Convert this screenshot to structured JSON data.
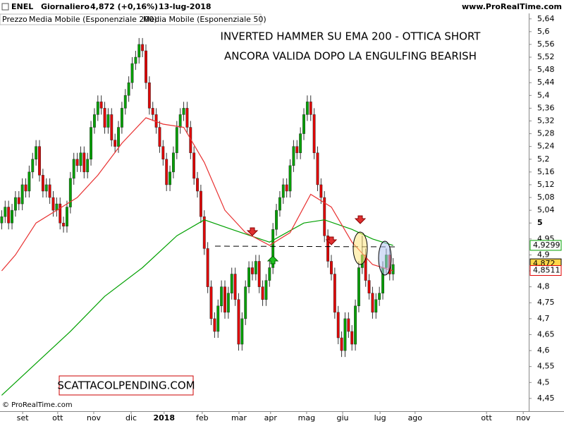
{
  "chart_data": {
    "type": "candlestick",
    "symbol": "ENEL",
    "period": "Giornaliero",
    "quote": "4,872 (+0,16%)",
    "date": "13-lug-2018",
    "site": "www.ProRealTime.com",
    "price_label": "Prezzo",
    "annotation": [
      "INVERTED HAMMER SU EMA 200 - OTTICA SHORT",
      "ANCORA VALIDA DOPO LA ENGULFING BEARISH"
    ],
    "watermark": "SCATTACOLPENDING.COM",
    "copyright": "© ProRealTime.com",
    "up_color": "#00a000",
    "down_color": "#e00000",
    "open": [
      5.0,
      5.02,
      5.05,
      5.0,
      5.04,
      5.08,
      5.06,
      5.12,
      5.1,
      5.16,
      5.2,
      5.24,
      5.15,
      5.1,
      5.12,
      5.08,
      5.04,
      5.06,
      5.0,
      4.99,
      5.05,
      5.14,
      5.2,
      5.18,
      5.22,
      5.16,
      5.2,
      5.3,
      5.34,
      5.38,
      5.36,
      5.3,
      5.34,
      5.26,
      5.24,
      5.3,
      5.36,
      5.4,
      5.44,
      5.5,
      5.52,
      5.56,
      5.54,
      5.44,
      5.36,
      5.34,
      5.3,
      5.24,
      5.2,
      5.12,
      5.16,
      5.22,
      5.3,
      5.34,
      5.36,
      5.3,
      5.22,
      5.14,
      5.1,
      5.02,
      4.92,
      4.8,
      4.7,
      4.66,
      4.74,
      4.8,
      4.72,
      4.78,
      4.84,
      4.76,
      4.62,
      4.7,
      4.8,
      4.86,
      4.84,
      4.88,
      4.8,
      4.76,
      4.82,
      4.86,
      4.98,
      5.04,
      5.08,
      5.12,
      5.1,
      5.18,
      5.24,
      5.22,
      5.28,
      5.34,
      5.38,
      5.34,
      5.22,
      5.12,
      5.08,
      4.96,
      4.88,
      4.84,
      4.72,
      4.64,
      4.6,
      4.7,
      4.66,
      4.62,
      4.74,
      4.86,
      4.9,
      4.82,
      4.78,
      4.72,
      4.76,
      4.78,
      4.86,
      4.9,
      4.84
    ],
    "high": [
      5.04,
      5.07,
      5.07,
      5.06,
      5.1,
      5.1,
      5.14,
      5.14,
      5.18,
      5.22,
      5.26,
      5.26,
      5.17,
      5.14,
      5.14,
      5.1,
      5.08,
      5.08,
      5.02,
      5.07,
      5.16,
      5.22,
      5.22,
      5.24,
      5.24,
      5.22,
      5.32,
      5.36,
      5.4,
      5.4,
      5.38,
      5.36,
      5.36,
      5.28,
      5.32,
      5.38,
      5.42,
      5.46,
      5.52,
      5.54,
      5.58,
      5.58,
      5.56,
      5.46,
      5.38,
      5.36,
      5.32,
      5.26,
      5.22,
      5.18,
      5.24,
      5.32,
      5.36,
      5.38,
      5.38,
      5.32,
      5.24,
      5.16,
      5.12,
      5.04,
      4.94,
      4.82,
      4.72,
      4.76,
      4.82,
      4.82,
      4.8,
      4.86,
      4.86,
      4.78,
      4.72,
      4.82,
      4.88,
      4.88,
      4.9,
      4.9,
      4.82,
      4.84,
      4.88,
      5.0,
      5.06,
      5.1,
      5.14,
      5.14,
      5.2,
      5.26,
      5.26,
      5.3,
      5.36,
      5.4,
      5.4,
      5.36,
      5.24,
      5.14,
      5.1,
      4.98,
      4.9,
      4.86,
      4.74,
      4.66,
      4.72,
      4.72,
      4.68,
      4.76,
      4.88,
      4.96,
      4.92,
      4.84,
      4.8,
      4.78,
      4.8,
      4.88,
      4.92,
      4.92,
      4.89
    ],
    "low": [
      4.98,
      5.0,
      4.98,
      4.98,
      5.02,
      5.04,
      5.04,
      5.08,
      5.08,
      5.14,
      5.18,
      5.13,
      5.08,
      5.08,
      5.06,
      5.02,
      5.02,
      4.98,
      4.97,
      4.97,
      5.03,
      5.12,
      5.16,
      5.16,
      5.14,
      5.14,
      5.18,
      5.28,
      5.32,
      5.34,
      5.28,
      5.28,
      5.24,
      5.22,
      5.22,
      5.28,
      5.34,
      5.38,
      5.42,
      5.48,
      5.5,
      5.52,
      5.42,
      5.34,
      5.32,
      5.28,
      5.22,
      5.18,
      5.1,
      5.1,
      5.14,
      5.2,
      5.28,
      5.32,
      5.28,
      5.2,
      5.12,
      5.08,
      5.0,
      4.9,
      4.78,
      4.68,
      4.64,
      4.64,
      4.72,
      4.7,
      4.7,
      4.76,
      4.74,
      4.6,
      4.6,
      4.68,
      4.78,
      4.82,
      4.82,
      4.78,
      4.74,
      4.74,
      4.8,
      4.84,
      4.96,
      5.02,
      5.06,
      5.08,
      5.08,
      5.16,
      5.2,
      5.2,
      5.26,
      5.32,
      5.32,
      5.2,
      5.1,
      5.06,
      4.94,
      4.86,
      4.82,
      4.7,
      4.62,
      4.58,
      4.58,
      4.64,
      4.6,
      4.6,
      4.72,
      4.84,
      4.8,
      4.76,
      4.7,
      4.7,
      4.74,
      4.76,
      4.84,
      4.82,
      4.82
    ],
    "close": [
      5.02,
      5.05,
      5.0,
      5.04,
      5.08,
      5.06,
      5.12,
      5.1,
      5.16,
      5.2,
      5.24,
      5.15,
      5.1,
      5.12,
      5.08,
      5.04,
      5.06,
      5.0,
      4.99,
      5.05,
      5.14,
      5.2,
      5.18,
      5.22,
      5.16,
      5.2,
      5.3,
      5.34,
      5.38,
      5.36,
      5.3,
      5.34,
      5.26,
      5.24,
      5.3,
      5.36,
      5.4,
      5.44,
      5.5,
      5.52,
      5.56,
      5.54,
      5.44,
      5.36,
      5.34,
      5.3,
      5.24,
      5.2,
      5.12,
      5.16,
      5.22,
      5.3,
      5.34,
      5.36,
      5.3,
      5.22,
      5.14,
      5.1,
      5.02,
      4.92,
      4.8,
      4.7,
      4.66,
      4.74,
      4.8,
      4.72,
      4.78,
      4.84,
      4.76,
      4.62,
      4.7,
      4.8,
      4.86,
      4.84,
      4.88,
      4.8,
      4.76,
      4.82,
      4.86,
      4.98,
      5.04,
      5.08,
      5.12,
      5.1,
      5.18,
      5.24,
      5.22,
      5.28,
      5.34,
      5.38,
      5.34,
      5.22,
      5.12,
      5.08,
      4.96,
      4.88,
      4.84,
      4.72,
      4.64,
      4.6,
      4.7,
      4.66,
      4.62,
      4.74,
      4.86,
      4.9,
      4.82,
      4.78,
      4.72,
      4.76,
      4.78,
      4.86,
      4.9,
      4.84,
      4.87
    ],
    "lines": [
      {
        "name": "Media Mobile (Esponenziale 200)",
        "color": "#00a000",
        "x": [
          0,
          20,
          30,
          41,
          51,
          59,
          67,
          78,
          88,
          94,
          102,
          108,
          114
        ],
        "values": [
          4.46,
          4.66,
          4.77,
          4.86,
          4.96,
          5.01,
          4.98,
          4.94,
          5.0,
          5.01,
          4.98,
          4.95,
          4.93
        ]
      },
      {
        "name": "Media Mobile (Esponenziale 50)",
        "color": "#e83030",
        "x": [
          0,
          4,
          10,
          16,
          22,
          28,
          35,
          42,
          47,
          53,
          59,
          65,
          71,
          78,
          84,
          90,
          96,
          102,
          108,
          114
        ],
        "values": [
          4.85,
          4.9,
          5.0,
          5.04,
          5.08,
          5.15,
          5.25,
          5.33,
          5.31,
          5.3,
          5.19,
          5.04,
          4.97,
          4.93,
          4.97,
          5.09,
          5.05,
          4.94,
          4.87,
          4.85
        ]
      }
    ],
    "price_tags": [
      {
        "value": 4.9299,
        "label": "4,9299",
        "color": "#00a000",
        "fill": "#ffffff"
      },
      {
        "value": 4.872,
        "label": "4,872",
        "color": "#000000",
        "fill": "#ffd84a"
      },
      {
        "value": 4.8511,
        "label": "4,8511",
        "color": "#e00000",
        "fill": "#ffffff"
      }
    ],
    "xlim": [
      -0.5,
      153.5
    ],
    "xticks": [
      {
        "value": 6.1,
        "label": "set"
      },
      {
        "value": 16.3,
        "label": "ott"
      },
      {
        "value": 26.8,
        "label": "nov"
      },
      {
        "value": 37.7,
        "label": "dic"
      },
      {
        "value": 47.3,
        "label": "2018"
      },
      {
        "value": 58.4,
        "label": "feb"
      },
      {
        "value": 69.1,
        "label": "mar"
      },
      {
        "value": 78.3,
        "label": "apr"
      },
      {
        "value": 88.8,
        "label": "mag"
      },
      {
        "value": 99.3,
        "label": "giu"
      },
      {
        "value": 110.2,
        "label": "lug"
      },
      {
        "value": 120.4,
        "label": "ago"
      },
      {
        "value": 141.2,
        "label": "ott"
      },
      {
        "value": 151.9,
        "label": "nov"
      }
    ],
    "ylim": [
      4.41,
      5.655
    ],
    "yticks": [
      {
        "value": 5.64,
        "label": "5,64"
      },
      {
        "value": 5.6,
        "label": "5,6"
      },
      {
        "value": 5.56,
        "label": "5,56"
      },
      {
        "value": 5.52,
        "label": "5,52"
      },
      {
        "value": 5.48,
        "label": "5,48"
      },
      {
        "value": 5.44,
        "label": "5,44"
      },
      {
        "value": 5.4,
        "label": "5,4"
      },
      {
        "value": 5.36,
        "label": "5,36"
      },
      {
        "value": 5.32,
        "label": "5,32"
      },
      {
        "value": 5.28,
        "label": "5,28"
      },
      {
        "value": 5.24,
        "label": "5,24"
      },
      {
        "value": 5.2,
        "label": "5,2"
      },
      {
        "value": 5.16,
        "label": "5,16"
      },
      {
        "value": 5.12,
        "label": "5,12"
      },
      {
        "value": 5.08,
        "label": "5,08"
      },
      {
        "value": 5.04,
        "label": "5,04"
      },
      5,
      {
        "value": 4.95,
        "label": "4,95"
      },
      {
        "value": 4.9,
        "label": "4,9"
      },
      {
        "value": 4.85,
        "label": "4,85"
      },
      {
        "value": 4.8,
        "label": "4,8"
      },
      {
        "value": 4.75,
        "label": "4,75"
      },
      {
        "value": 4.7,
        "label": "4,7"
      },
      {
        "value": 4.65,
        "label": "4,65"
      },
      {
        "value": 4.6,
        "label": "4,6"
      },
      {
        "value": 4.55,
        "label": "4,55"
      },
      {
        "value": 4.5,
        "label": "4,5"
      },
      {
        "value": 4.45,
        "label": "4,45"
      }
    ]
  }
}
